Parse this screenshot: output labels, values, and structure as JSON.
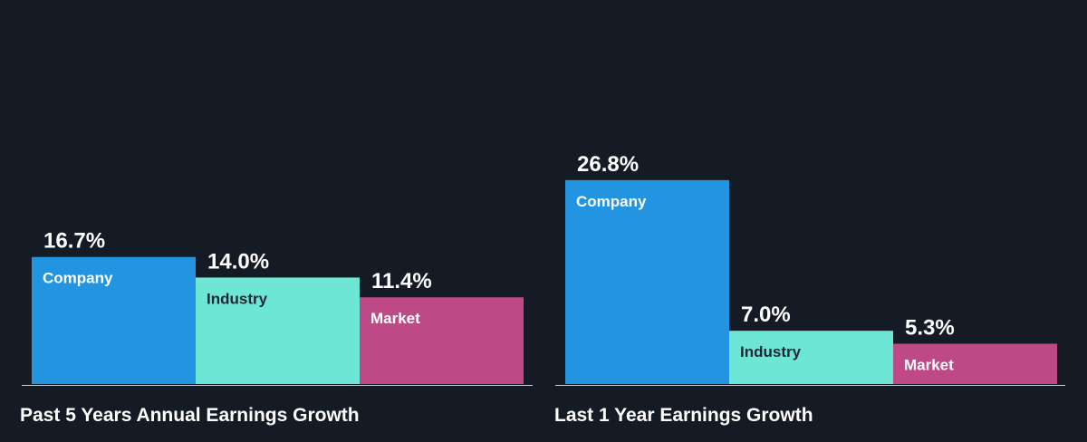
{
  "colors": {
    "background": "#151b24",
    "company": "#2394e0",
    "industry": "#6ee6d6",
    "market": "#bd4a87",
    "value_text": "#ffffff",
    "axis": "#c9ced6"
  },
  "chart_data": [
    {
      "type": "bar",
      "title": "Past 5 Years Annual Earnings Growth",
      "categories": [
        "Company",
        "Industry",
        "Market"
      ],
      "values": [
        16.7,
        14.0,
        11.4
      ],
      "value_labels": [
        "16.7%",
        "14.0%",
        "11.4%"
      ],
      "unit": "%",
      "grid": false,
      "legend": "none"
    },
    {
      "type": "bar",
      "title": "Last 1 Year Earnings Growth",
      "categories": [
        "Company",
        "Industry",
        "Market"
      ],
      "values": [
        26.8,
        7.0,
        5.3
      ],
      "value_labels": [
        "26.8%",
        "7.0%",
        "5.3%"
      ],
      "unit": "%",
      "grid": false,
      "legend": "none"
    }
  ]
}
